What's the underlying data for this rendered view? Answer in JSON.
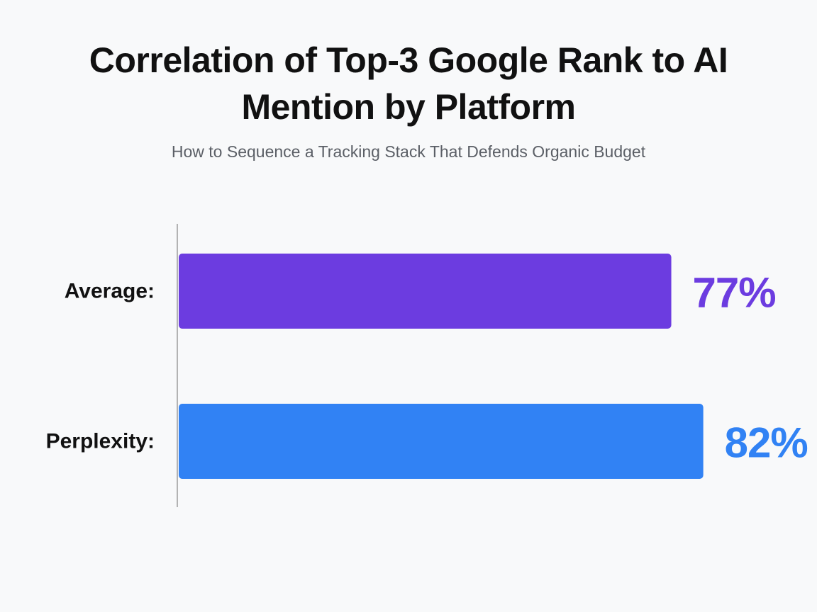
{
  "chart_data": {
    "type": "bar",
    "orientation": "horizontal",
    "title": "Correlation of Top-3 Google Rank to AI Mention by Platform",
    "subtitle": "How to Sequence a Tracking Stack That Defends Organic Budget",
    "categories": [
      "Average:",
      "Perplexity:"
    ],
    "values": [
      77,
      82
    ],
    "value_labels": [
      "77%",
      "82%"
    ],
    "colors": [
      "#6c3ce0",
      "#3182f4"
    ],
    "xlim": [
      0,
      100
    ],
    "grid": false,
    "legend": "none"
  }
}
